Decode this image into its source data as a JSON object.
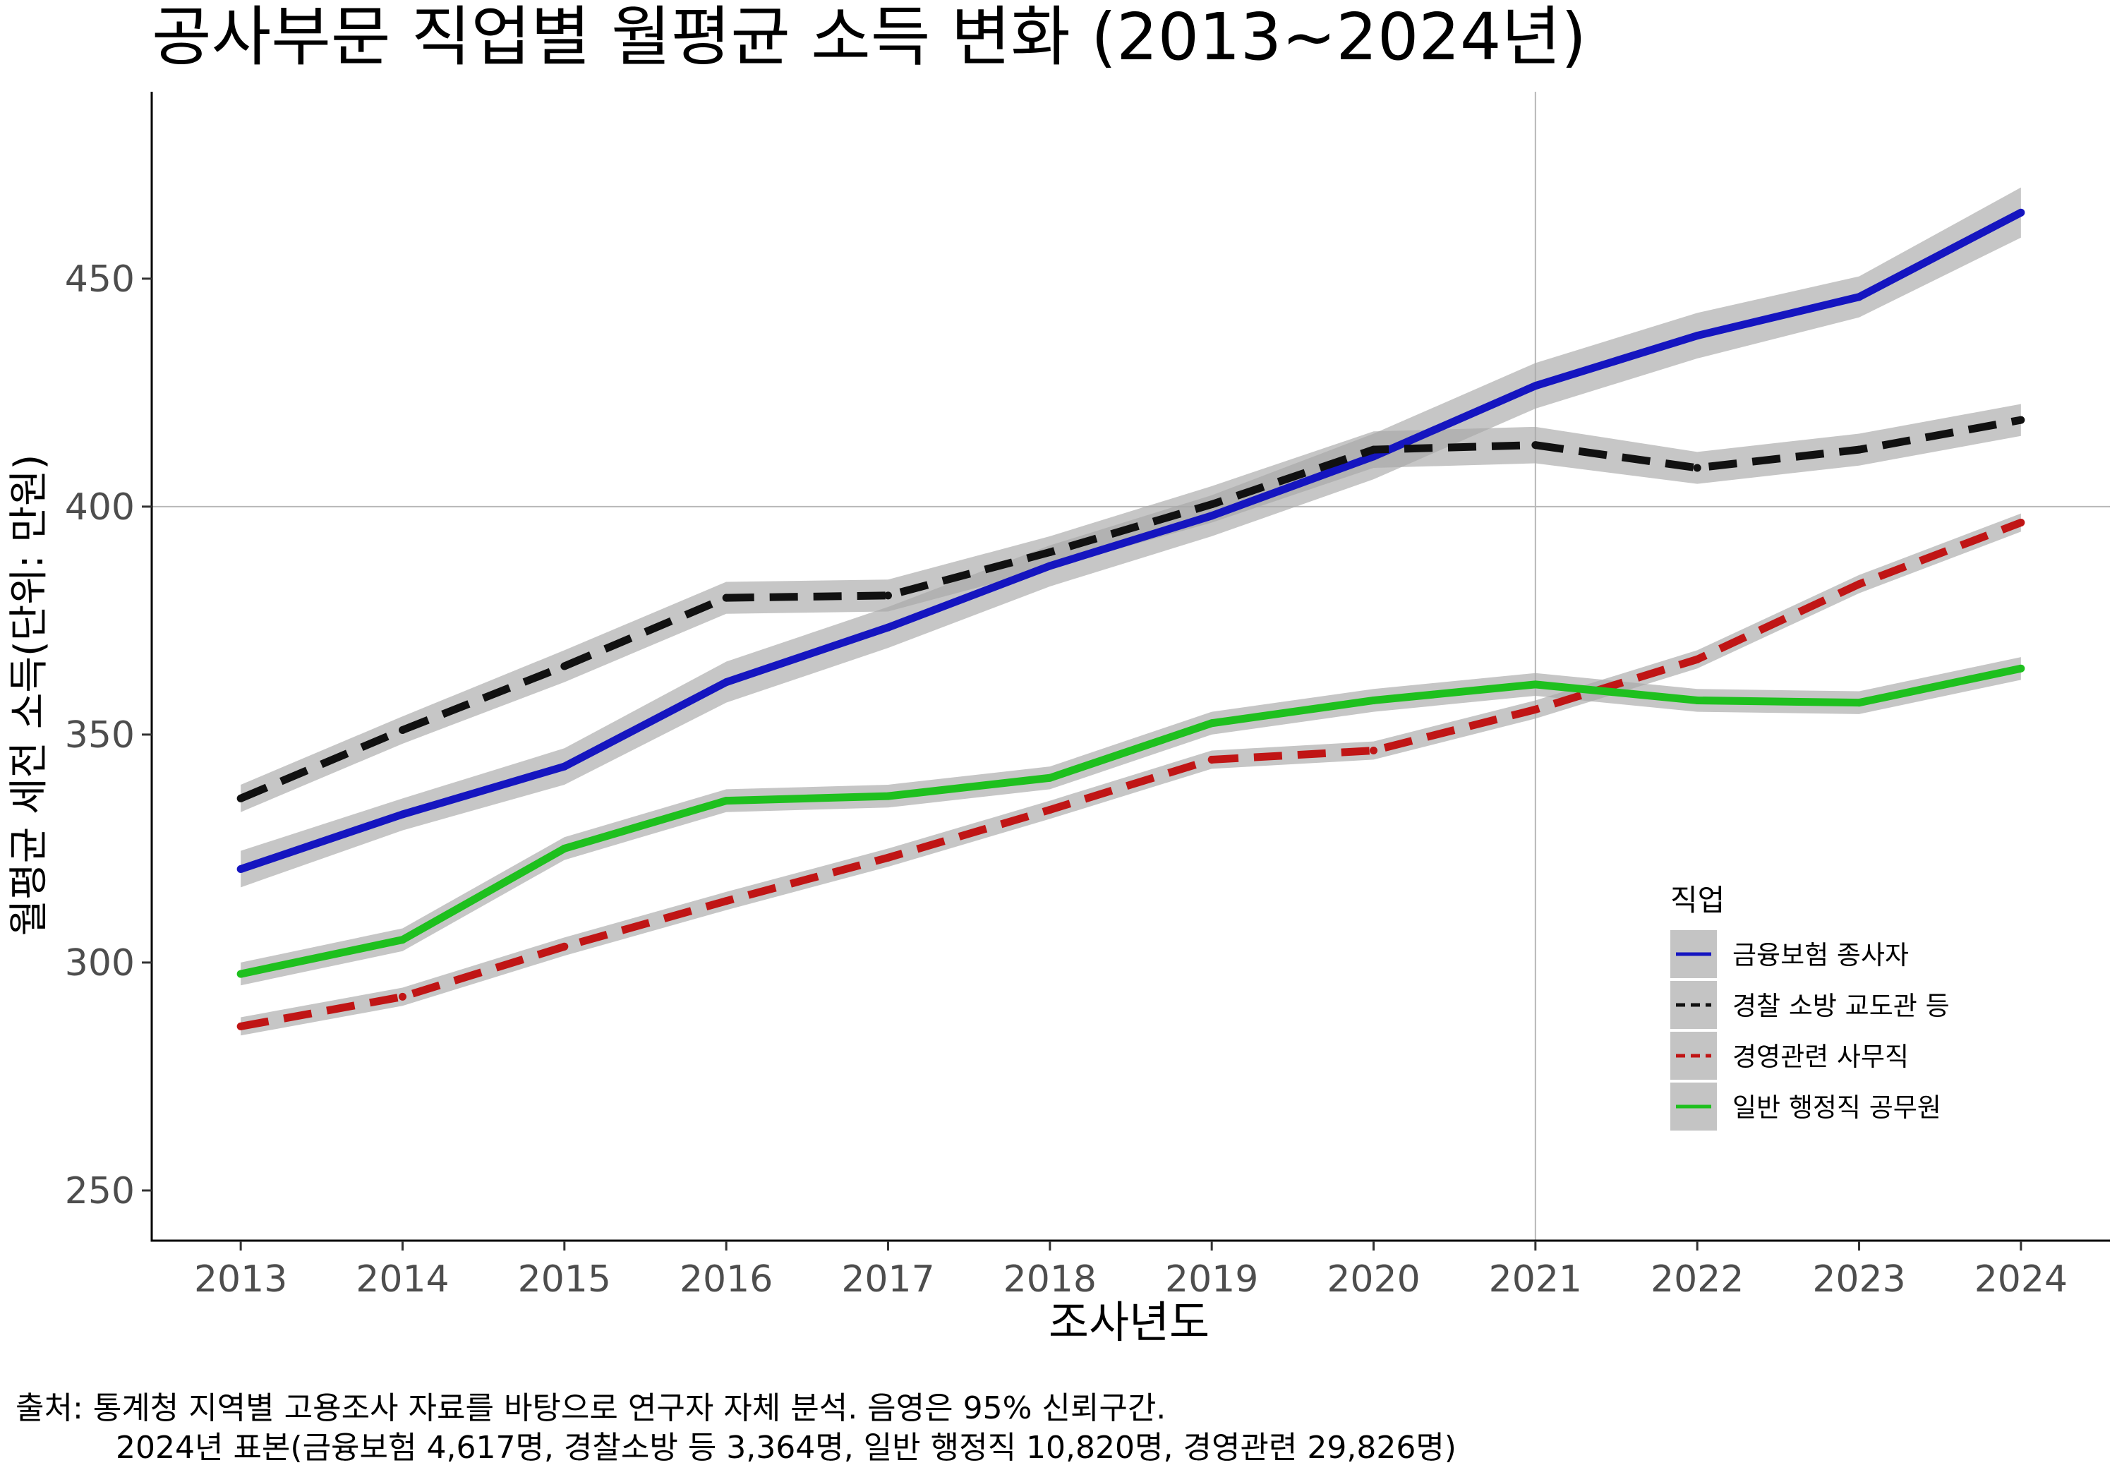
{
  "chart_data": {
    "type": "line",
    "title": "공사부문 직업별 월평균 소득 변화 (2013~2024년)",
    "xlabel": "조사년도",
    "ylabel": "월평균 세전 소득(단위: 만원)",
    "x": [
      2013,
      2014,
      2015,
      2016,
      2017,
      2018,
      2019,
      2020,
      2021,
      2022,
      2023,
      2024
    ],
    "xlim": [
      2012.45,
      2024.55
    ],
    "ylim": [
      239,
      491
    ],
    "y_ticks": [
      250,
      300,
      350,
      400,
      450
    ],
    "reference_lines": {
      "x": 2021,
      "y": 400
    },
    "grid": false,
    "legend_title": "직업",
    "legend_position": "right-bottom",
    "confidence_band": "95%",
    "series": [
      {
        "name": "금융보험 종사자",
        "style": "solid",
        "color": "#1515c0",
        "values": [
          320.5,
          332.5,
          343,
          361.5,
          373.5,
          387,
          398,
          411,
          426.5,
          437.5,
          446,
          464.5
        ],
        "ci_halfwidth": [
          4,
          3.5,
          4,
          4.5,
          4.5,
          4.5,
          4.5,
          5,
          5,
          5,
          4.5,
          5.5
        ]
      },
      {
        "name": "경찰 소방 교도관 등",
        "style": "dashed",
        "color": "#111111",
        "values": [
          336,
          351,
          365,
          380,
          380.5,
          390,
          400.5,
          412.5,
          413.5,
          408.5,
          412.5,
          419
        ],
        "ci_halfwidth": [
          3,
          3,
          3.5,
          3.5,
          3.5,
          3.5,
          4,
          4,
          4,
          3.5,
          3.5,
          3.5
        ]
      },
      {
        "name": "경영관련 사무직",
        "style": "dashed",
        "color": "#c01515",
        "values": [
          286,
          292.5,
          303.5,
          313.5,
          323,
          333.5,
          344.5,
          346.5,
          355.5,
          366.5,
          383,
          396.5
        ],
        "ci_halfwidth": [
          2,
          2,
          2,
          2,
          2,
          2,
          2,
          2,
          2,
          2,
          2,
          2
        ]
      },
      {
        "name": "일반 행정직 공무원",
        "style": "solid",
        "color": "#1ec01e",
        "values": [
          297.5,
          305,
          325,
          335.5,
          336.5,
          340.5,
          352.5,
          357.5,
          361,
          357.5,
          357,
          364.5
        ],
        "ci_halfwidth": [
          2.5,
          2.5,
          2.5,
          2.5,
          2.5,
          2.5,
          2.5,
          2.5,
          2.5,
          2.5,
          2.5,
          2.5
        ]
      }
    ]
  },
  "caption": {
    "line1": "출처: 통계청 지역별 고용조사 자료를 바탕으로 연구자 자체 분석. 음영은 95% 신뢰구간.",
    "line2": "2024년 표본(금융보험 4,617명, 경찰소방 등 3,364명, 일반 행정직 10,820명, 경영관련 29,826명)"
  }
}
